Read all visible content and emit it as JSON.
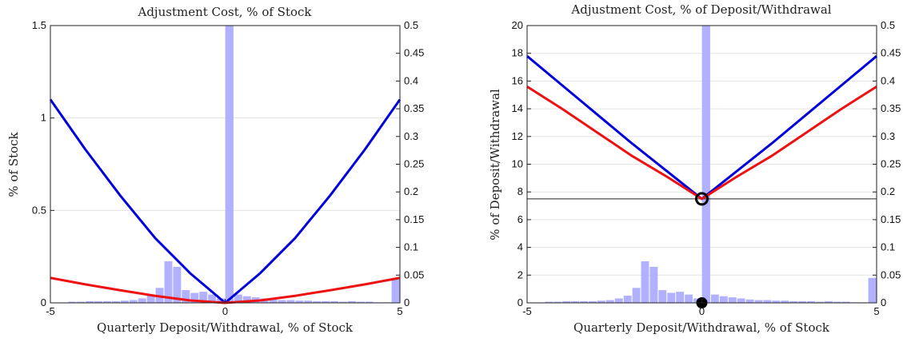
{
  "chart_data": [
    {
      "type": "line",
      "title": "Adjustment Cost, % of Stock",
      "xlabel": "Quarterly Deposit/Withdrawal, % of Stock",
      "ylabel": "% of Stock",
      "xlim": [
        -5,
        5
      ],
      "ylim": [
        0,
        1.5
      ],
      "y2lim": [
        0,
        0.5
      ],
      "xticks": [
        "-5",
        "0",
        "5"
      ],
      "yticks": [
        "0",
        "0.5",
        "1",
        "1.5"
      ],
      "y2ticks": [
        "0",
        "0.05",
        "0.1",
        "0.15",
        "0.2",
        "0.25",
        "0.3",
        "0.35",
        "0.4",
        "0.45",
        "0.5"
      ],
      "grid": true,
      "series": [
        {
          "color": "#0000dd",
          "x": [
            -5,
            -4,
            -3,
            -2,
            -1,
            0,
            1,
            2,
            3,
            4,
            5
          ],
          "y": [
            1.1,
            0.83,
            0.58,
            0.35,
            0.16,
            0.0,
            0.16,
            0.35,
            0.58,
            0.83,
            1.1
          ]
        },
        {
          "color": "#ee1111",
          "x": [
            -5,
            -4,
            -3,
            -2,
            -1,
            0,
            1,
            2,
            3,
            4,
            5
          ],
          "y": [
            0.135,
            0.1,
            0.068,
            0.038,
            0.013,
            0.0,
            0.013,
            0.038,
            0.068,
            0.1,
            0.135
          ]
        }
      ],
      "histogram": {
        "color": "#a8a8ff",
        "axis": "right",
        "bin_edges_start": -5,
        "bin_width": 0.25,
        "values": [
          0.0,
          0.0,
          0.002,
          0.002,
          0.003,
          0.003,
          0.003,
          0.003,
          0.004,
          0.005,
          0.008,
          0.013,
          0.027,
          0.075,
          0.065,
          0.023,
          0.018,
          0.02,
          0.015,
          0.008,
          0.5,
          0.015,
          0.012,
          0.01,
          0.008,
          0.006,
          0.005,
          0.005,
          0.004,
          0.004,
          0.003,
          0.003,
          0.003,
          0.002,
          0.003,
          0.002,
          0.002,
          0.001,
          0.001,
          0.045
        ]
      }
    },
    {
      "type": "line",
      "title": "Adjustment Cost, % of Deposit/Withdrawal",
      "xlabel": "Quarterly Deposit/Withdrawal, % of Stock",
      "ylabel": "% of Deposit/Withdrawal",
      "xlim": [
        -5,
        5
      ],
      "ylim": [
        0,
        20
      ],
      "y2lim": [
        0,
        0.5
      ],
      "xticks": [
        "-5",
        "0",
        "5"
      ],
      "yticks": [
        "0",
        "2",
        "4",
        "6",
        "8",
        "10",
        "12",
        "14",
        "16",
        "18",
        "20"
      ],
      "y2ticks": [
        "0",
        "0.05",
        "0.1",
        "0.15",
        "0.2",
        "0.25",
        "0.3",
        "0.35",
        "0.4",
        "0.45",
        "0.5"
      ],
      "grid": true,
      "hline": 7.5,
      "markers": {
        "open_circle": {
          "x": 0,
          "y": 7.5
        },
        "filled_circle": {
          "x": 0,
          "y": 0
        }
      },
      "series": [
        {
          "color": "#0000dd",
          "x": [
            -5,
            -4,
            -3,
            -2,
            -1,
            -0.5,
            0,
            0.5,
            1,
            2,
            3,
            4,
            5
          ],
          "y": [
            17.8,
            15.7,
            13.6,
            11.5,
            9.5,
            8.5,
            7.5,
            8.5,
            9.5,
            11.5,
            13.6,
            15.7,
            17.8
          ]
        },
        {
          "color": "#ee1111",
          "x": [
            -5,
            -4,
            -3,
            -2,
            -1,
            -0.5,
            0,
            0.5,
            1,
            2,
            3,
            4,
            5
          ],
          "y": [
            15.6,
            14.0,
            12.3,
            10.6,
            9.1,
            8.3,
            7.5,
            8.3,
            9.1,
            10.6,
            12.3,
            14.0,
            15.6
          ]
        }
      ],
      "histogram": {
        "color": "#a8a8ff",
        "axis": "right",
        "bin_edges_start": -5,
        "bin_width": 0.25,
        "values": [
          0.0,
          0.0,
          0.002,
          0.002,
          0.003,
          0.003,
          0.003,
          0.003,
          0.004,
          0.005,
          0.008,
          0.013,
          0.027,
          0.075,
          0.065,
          0.023,
          0.018,
          0.02,
          0.015,
          0.008,
          0.5,
          0.015,
          0.012,
          0.01,
          0.008,
          0.006,
          0.005,
          0.005,
          0.004,
          0.004,
          0.003,
          0.003,
          0.003,
          0.002,
          0.003,
          0.002,
          0.002,
          0.001,
          0.001,
          0.045
        ]
      }
    }
  ]
}
